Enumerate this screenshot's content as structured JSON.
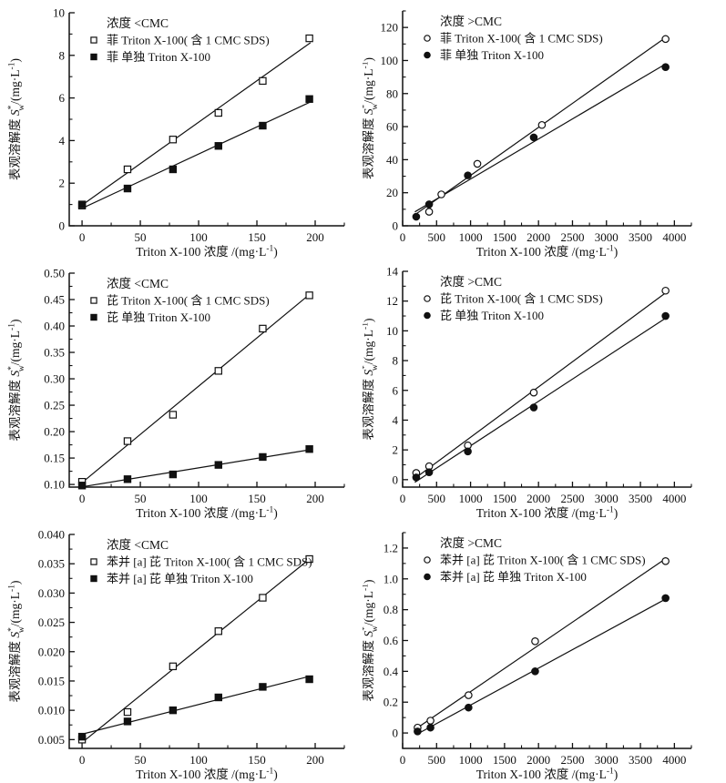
{
  "colors": {
    "ink": "#111111",
    "background": "#ffffff",
    "open_marker_fill": "#ffffff"
  },
  "axis_labels": {
    "y": {
      "prefix": "表观溶解度 ",
      "symbol": "S",
      "sup": "*",
      "sub": "w",
      "unit_open": "/(mg·L",
      "unit_exp": "-1",
      "unit_close": ")"
    },
    "x": {
      "text": "Triton X-100 浓度 /(mg·L",
      "exp": "-1",
      "close": ")"
    }
  },
  "chart_data": [
    {
      "type": "scatter",
      "id": "phenanthrene-below-cmc",
      "legend_title": "浓度 <CMC",
      "xlim": [
        -11,
        225
      ],
      "ylim": [
        0,
        10
      ],
      "xticks": [
        0,
        50,
        100,
        150,
        200
      ],
      "xtick_labels": [
        "0",
        "50",
        "100",
        "150",
        "200"
      ],
      "yticks": [
        0,
        2,
        4,
        6,
        8,
        10
      ],
      "ytick_labels": [
        "0",
        "2",
        "4",
        "6",
        "8",
        "10"
      ],
      "x_minor_step": 25,
      "y_minor_step": 1,
      "margin_left": 76,
      "legend_position": "top-left-inside",
      "grid": false,
      "series": [
        {
          "label": "菲 Triton X-100( 含 1 CMC SDS)",
          "marker": "open-square",
          "x": [
            0,
            39,
            78,
            117,
            155,
            195
          ],
          "y": [
            0.95,
            2.65,
            4.05,
            5.3,
            6.8,
            8.8
          ],
          "fit_range": [
            0,
            196
          ]
        },
        {
          "label": "菲 单独 Triton X-100",
          "marker": "filled-square",
          "x": [
            0,
            39,
            78,
            117,
            155,
            195
          ],
          "y": [
            1.0,
            1.75,
            2.65,
            3.75,
            4.7,
            5.95
          ],
          "fit_range": [
            0,
            196
          ]
        }
      ]
    },
    {
      "type": "scatter",
      "id": "phenanthrene-above-cmc",
      "legend_title": "浓度 >CMC",
      "xlim": [
        0,
        4250
      ],
      "ylim": [
        0,
        130
      ],
      "xticks": [
        0,
        500,
        1000,
        1500,
        2000,
        2500,
        3000,
        3500,
        4000
      ],
      "xtick_labels": [
        "0",
        "500",
        "1000",
        "1500",
        "2000",
        "2500",
        "3000",
        "3500",
        "4000"
      ],
      "yticks": [
        0,
        20,
        40,
        60,
        80,
        100,
        120
      ],
      "ytick_labels": [
        "0",
        "20",
        "40",
        "60",
        "80",
        "100",
        "120"
      ],
      "x_minor_step": 250,
      "y_minor_step": 10,
      "margin_left": 44,
      "legend_position": "top-left-inside",
      "grid": false,
      "series": [
        {
          "label": "菲 Triton X-100( 含 1 CMC SDS)",
          "marker": "open-circle",
          "x": [
            390,
            570,
            1100,
            2050,
            3870
          ],
          "y": [
            8.5,
            19,
            37.5,
            61,
            113
          ],
          "fit_range": [
            180,
            3880
          ]
        },
        {
          "label": "菲 单独 Triton X-100",
          "marker": "filled-circle",
          "x": [
            200,
            390,
            960,
            1930,
            3870
          ],
          "y": [
            5.5,
            13,
            30.5,
            53.5,
            96
          ],
          "fit_range": [
            180,
            3880
          ]
        }
      ]
    },
    {
      "type": "scatter",
      "id": "pyrene-below-cmc",
      "legend_title": "浓度 <CMC",
      "xlim": [
        -11,
        225
      ],
      "ylim": [
        0.095,
        0.5
      ],
      "xticks": [
        0,
        50,
        100,
        150,
        200
      ],
      "xtick_labels": [
        "0",
        "50",
        "100",
        "150",
        "200"
      ],
      "yticks": [
        0.1,
        0.15,
        0.2,
        0.25,
        0.3,
        0.35,
        0.4,
        0.45,
        0.5
      ],
      "ytick_labels": [
        "0.10",
        "0.15",
        "0.20",
        "0.25",
        "0.30",
        "0.35",
        "0.40",
        "0.45",
        "0.50"
      ],
      "x_minor_step": 25,
      "y_minor_step": 0.025,
      "margin_left": 76,
      "legend_position": "top-left-inside",
      "grid": false,
      "series": [
        {
          "label": "芘 Triton X-100( 含 1 CMC SDS)",
          "marker": "open-square",
          "x": [
            0,
            39,
            78,
            117,
            155,
            195
          ],
          "y": [
            0.105,
            0.182,
            0.232,
            0.315,
            0.395,
            0.458
          ],
          "fit_range": [
            0,
            196
          ]
        },
        {
          "label": "芘 单独 Triton X-100",
          "marker": "filled-square",
          "x": [
            0,
            39,
            78,
            117,
            155,
            195
          ],
          "y": [
            0.098,
            0.11,
            0.119,
            0.137,
            0.152,
            0.167
          ],
          "fit_range": [
            0,
            196
          ]
        }
      ]
    },
    {
      "type": "scatter",
      "id": "pyrene-above-cmc",
      "legend_title": "浓度 >CMC",
      "xlim": [
        0,
        4250
      ],
      "ylim": [
        -0.5,
        14
      ],
      "xticks": [
        0,
        500,
        1000,
        1500,
        2000,
        2500,
        3000,
        3500,
        4000
      ],
      "xtick_labels": [
        "0",
        "500",
        "1000",
        "1500",
        "2000",
        "2500",
        "3000",
        "3500",
        "4000"
      ],
      "yticks": [
        0,
        2,
        4,
        6,
        8,
        10,
        12,
        14
      ],
      "ytick_labels": [
        "0",
        "2",
        "4",
        "6",
        "8",
        "10",
        "12",
        "14"
      ],
      "x_minor_step": 250,
      "y_minor_step": 1,
      "margin_left": 44,
      "legend_position": "top-left-inside",
      "grid": false,
      "series": [
        {
          "label": "芘 Triton X-100( 含 1 CMC SDS)",
          "marker": "open-circle",
          "x": [
            200,
            390,
            960,
            1930,
            3870
          ],
          "y": [
            0.45,
            0.9,
            2.3,
            5.85,
            12.7
          ],
          "fit_range": [
            180,
            3880
          ]
        },
        {
          "label": "芘 单独 Triton X-100",
          "marker": "filled-circle",
          "x": [
            200,
            390,
            960,
            1930,
            3870
          ],
          "y": [
            0.15,
            0.5,
            1.9,
            4.85,
            11.0
          ],
          "fit_range": [
            180,
            3880
          ]
        }
      ]
    },
    {
      "type": "scatter",
      "id": "benzo-a-pyrene-below-cmc",
      "legend_title": "浓度 <CMC",
      "xlim": [
        -11,
        225
      ],
      "ylim": [
        0.0035,
        0.04
      ],
      "xticks": [
        0,
        50,
        100,
        150,
        200
      ],
      "xtick_labels": [
        "0",
        "50",
        "100",
        "150",
        "200"
      ],
      "yticks": [
        0.005,
        0.01,
        0.015,
        0.02,
        0.025,
        0.03,
        0.035,
        0.04
      ],
      "ytick_labels": [
        "0.005",
        "0.010",
        "0.015",
        "0.020",
        "0.025",
        "0.030",
        "0.035",
        "0.040"
      ],
      "x_minor_step": 25,
      "y_minor_step": 0.0025,
      "margin_left": 76,
      "legend_position": "top-left-inside",
      "grid": false,
      "series": [
        {
          "label": "苯并 [a] 芘 Triton X-100( 含 1 CMC SDS)",
          "marker": "open-square",
          "x": [
            0,
            39,
            78,
            117,
            155,
            195
          ],
          "y": [
            0.005,
            0.0097,
            0.0175,
            0.0235,
            0.0292,
            0.0358
          ],
          "fit_range": [
            0,
            196
          ]
        },
        {
          "label": "苯并 [a] 芘 单独 Triton X-100",
          "marker": "filled-square",
          "x": [
            0,
            39,
            78,
            117,
            155,
            195
          ],
          "y": [
            0.0055,
            0.0081,
            0.01,
            0.0122,
            0.014,
            0.0153
          ],
          "fit_range": [
            0,
            196
          ]
        }
      ]
    },
    {
      "type": "scatter",
      "id": "benzo-a-pyrene-above-cmc",
      "legend_title": "浓度 >CMC",
      "xlim": [
        0,
        4250
      ],
      "ylim": [
        -0.1,
        1.3
      ],
      "xticks": [
        0,
        500,
        1000,
        1500,
        2000,
        2500,
        3000,
        3500,
        4000
      ],
      "xtick_labels": [
        "0",
        "500",
        "1000",
        "1500",
        "2000",
        "2500",
        "3000",
        "3500",
        "4000"
      ],
      "yticks": [
        0,
        0.2,
        0.4,
        0.6,
        0.8,
        1.0,
        1.2
      ],
      "ytick_labels": [
        "0",
        "0.2",
        "0.4",
        "0.6",
        "0.8",
        "1.0",
        "1.2"
      ],
      "x_minor_step": 250,
      "y_minor_step": 0.1,
      "margin_left": 44,
      "legend_position": "top-left-inside",
      "grid": false,
      "series": [
        {
          "label": "苯并 [a] 芘 Triton X-100( 含 1 CMC SDS)",
          "marker": "open-circle",
          "x": [
            220,
            410,
            970,
            1950,
            3870
          ],
          "y": [
            0.035,
            0.08,
            0.245,
            0.595,
            1.115
          ],
          "fit_range": [
            200,
            3880
          ]
        },
        {
          "label": "苯并 [a] 芘 单独 Triton X-100",
          "marker": "filled-circle",
          "x": [
            220,
            410,
            970,
            1950,
            3870
          ],
          "y": [
            0.01,
            0.035,
            0.165,
            0.4,
            0.875
          ],
          "fit_range": [
            200,
            3880
          ]
        }
      ]
    }
  ]
}
